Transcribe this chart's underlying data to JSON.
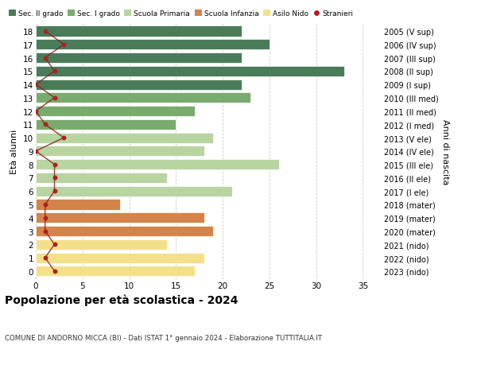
{
  "ages": [
    18,
    17,
    16,
    15,
    14,
    13,
    12,
    11,
    10,
    9,
    8,
    7,
    6,
    5,
    4,
    3,
    2,
    1,
    0
  ],
  "right_labels": [
    "2005 (V sup)",
    "2006 (IV sup)",
    "2007 (III sup)",
    "2008 (II sup)",
    "2009 (I sup)",
    "2010 (III med)",
    "2011 (II med)",
    "2012 (I med)",
    "2013 (V ele)",
    "2014 (IV ele)",
    "2015 (III ele)",
    "2016 (II ele)",
    "2017 (I ele)",
    "2018 (mater)",
    "2019 (mater)",
    "2020 (mater)",
    "2021 (nido)",
    "2022 (nido)",
    "2023 (nido)"
  ],
  "bar_values": [
    22,
    25,
    22,
    33,
    22,
    23,
    17,
    15,
    19,
    18,
    26,
    14,
    21,
    9,
    18,
    19,
    14,
    18,
    17
  ],
  "bar_colors": [
    "#4a7c59",
    "#4a7c59",
    "#4a7c59",
    "#4a7c59",
    "#4a7c59",
    "#7aab6e",
    "#7aab6e",
    "#7aab6e",
    "#b8d4a0",
    "#b8d4a0",
    "#b8d4a0",
    "#b8d4a0",
    "#b8d4a0",
    "#d4844a",
    "#d4844a",
    "#d4844a",
    "#f5e08a",
    "#f5e08a",
    "#f5e08a"
  ],
  "stranieri_values": [
    1,
    3,
    1,
    2,
    0,
    2,
    0,
    1,
    3,
    0,
    2,
    2,
    2,
    1,
    1,
    1,
    2,
    1,
    2
  ],
  "legend_labels": [
    "Sec. II grado",
    "Sec. I grado",
    "Scuola Primaria",
    "Scuola Infanzia",
    "Asilo Nido",
    "Stranieri"
  ],
  "legend_colors": [
    "#4a7c59",
    "#7aab6e",
    "#b8d4a0",
    "#d4844a",
    "#f5e08a",
    "#aa2222"
  ],
  "title": "Popolazione per età scolastica - 2024",
  "subtitle": "COMUNE DI ANDORNO MICCA (BI) - Dati ISTAT 1° gennaio 2024 - Elaborazione TUTTITALIA.IT",
  "ylabel": "Età alunni",
  "right_ylabel": "Anni di nascita",
  "xlim": [
    0,
    37
  ],
  "xticks": [
    0,
    5,
    10,
    15,
    20,
    25,
    30,
    35
  ],
  "background_color": "#ffffff",
  "bar_height": 0.78,
  "grid_color": "#cccccc"
}
